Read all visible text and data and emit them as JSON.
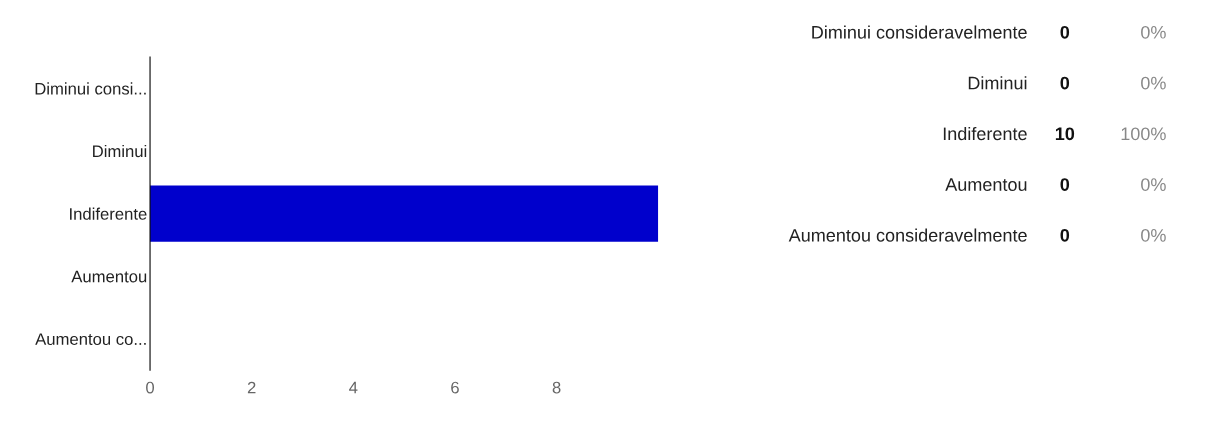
{
  "chart_data": [
    {
      "type": "bar",
      "orientation": "horizontal",
      "categories": [
        "Diminui consi...",
        "Diminui",
        "Indiferente",
        "Aumentou",
        "Aumentou co..."
      ],
      "values": [
        0,
        0,
        10,
        0,
        0
      ],
      "color": "#0000cc",
      "xlim": [
        0,
        10
      ],
      "xticks": [
        0,
        2,
        4,
        6,
        8
      ],
      "grid": false,
      "legend": false
    },
    {
      "type": "other",
      "categories": [
        "Diminui consideravelmente",
        "Diminui",
        "Indiferente",
        "Aumentou",
        "Aumentou consideravelmente"
      ],
      "values": [
        0,
        0,
        10,
        0,
        0
      ],
      "data_labels": true,
      "annotations": [
        "0%",
        "0%",
        "100%",
        "0%",
        "0%"
      ]
    }
  ]
}
